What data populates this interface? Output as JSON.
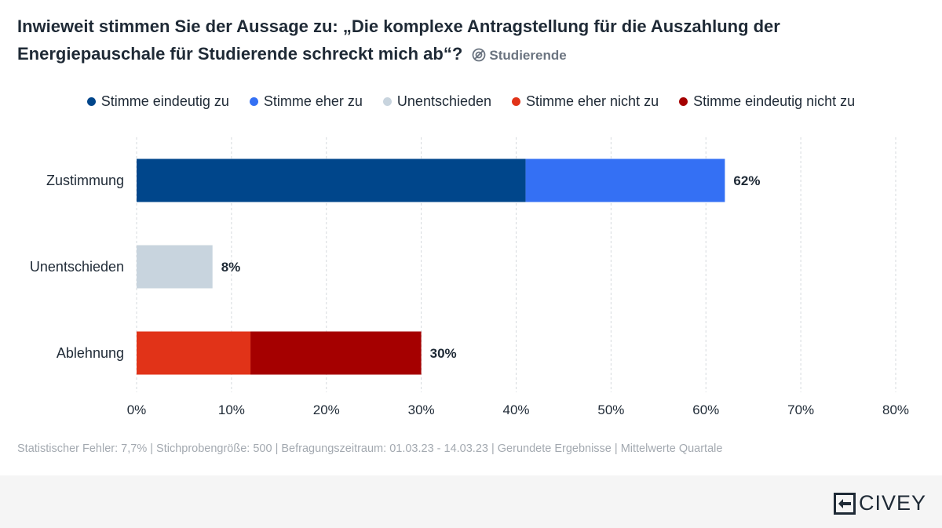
{
  "title": "Inwieweit stimmen Sie der Aussage zu: „Die komplexe Antragstellung für die Auszahlung der Energiepauschale für Studierende schreckt mich ab“?",
  "audience_label": "Studierende",
  "footer_note": "Statistischer Fehler: 7,7% | Stichprobengröße: 500 | Befragungszeitraum: 01.03.23 - 14.03.23 | Gerundete Ergebnisse | Mittelwerte Quartale",
  "brand": "CIVEY",
  "chart_data": {
    "type": "bar",
    "orientation": "horizontal",
    "stacked": true,
    "categories": [
      "Zustimmung",
      "Unentschieden",
      "Ablehnung"
    ],
    "series": [
      {
        "name": "Stimme eindeutig zu",
        "color": "#00468b",
        "values": [
          41,
          0,
          0
        ]
      },
      {
        "name": "Stimme eher zu",
        "color": "#3470f4",
        "values": [
          21,
          0,
          0
        ]
      },
      {
        "name": "Unentschieden",
        "color": "#c8d4de",
        "values": [
          0,
          8,
          0
        ]
      },
      {
        "name": "Stimme eher nicht zu",
        "color": "#e13318",
        "values": [
          0,
          0,
          12
        ]
      },
      {
        "name": "Stimme eindeutig nicht zu",
        "color": "#a50000",
        "values": [
          0,
          0,
          18
        ]
      }
    ],
    "totals": [
      "62%",
      "8%",
      "30%"
    ],
    "xlim": [
      0,
      80
    ],
    "xticks": [
      "0%",
      "10%",
      "20%",
      "30%",
      "40%",
      "50%",
      "60%",
      "70%",
      "80%"
    ],
    "grid": true,
    "legend_position": "top"
  }
}
